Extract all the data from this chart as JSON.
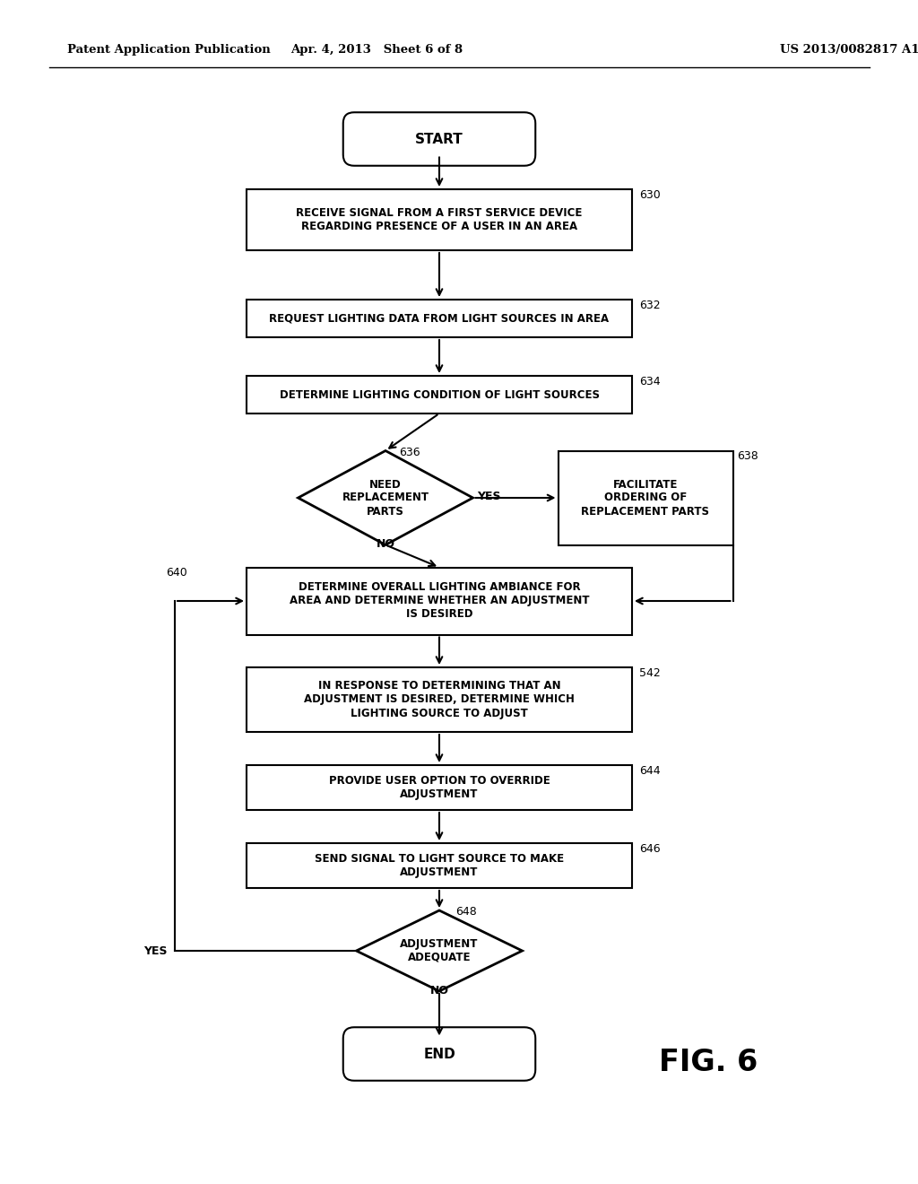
{
  "bg_color": "#ffffff",
  "header_left": "Patent Application Publication",
  "header_mid": "Apr. 4, 2013   Sheet 6 of 8",
  "header_right": "US 2013/0082817 A1",
  "fig_label": "FIG. 6",
  "start_label": "START",
  "end_label": "END",
  "b630_text": "RECEIVE SIGNAL FROM A FIRST SERVICE DEVICE\nREGARDING PRESENCE OF A USER IN AN AREA",
  "b630_tag": "630",
  "b632_text": "REQUEST LIGHTING DATA FROM LIGHT SOURCES IN AREA",
  "b632_tag": "632",
  "b634_text": "DETERMINE LIGHTING CONDITION OF LIGHT SOURCES",
  "b634_tag": "634",
  "d636_text": "NEED\nREPLACEMENT\nPARTS",
  "d636_tag": "636",
  "b638_text": "FACILITATE\nORDERING OF\nREPLACEMENT PARTS",
  "b638_tag": "638",
  "b640_text": "DETERMINE OVERALL LIGHTING AMBIANCE FOR\nAREA AND DETERMINE WHETHER AN ADJUSTMENT\nIS DESIRED",
  "b640_tag": "640",
  "b542_text": "IN RESPONSE TO DETERMINING THAT AN\nADJUSTMENT IS DESIRED, DETERMINE WHICH\nLIGHTING SOURCE TO ADJUST",
  "b542_tag": "542",
  "b644_text": "PROVIDE USER OPTION TO OVERRIDE\nADJUSTMENT",
  "b644_tag": "644",
  "b646_text": "SEND SIGNAL TO LIGHT SOURCE TO MAKE\nADJUSTMENT",
  "b646_tag": "646",
  "d648_text": "ADJUSTMENT\nADEQUATE",
  "d648_tag": "648"
}
